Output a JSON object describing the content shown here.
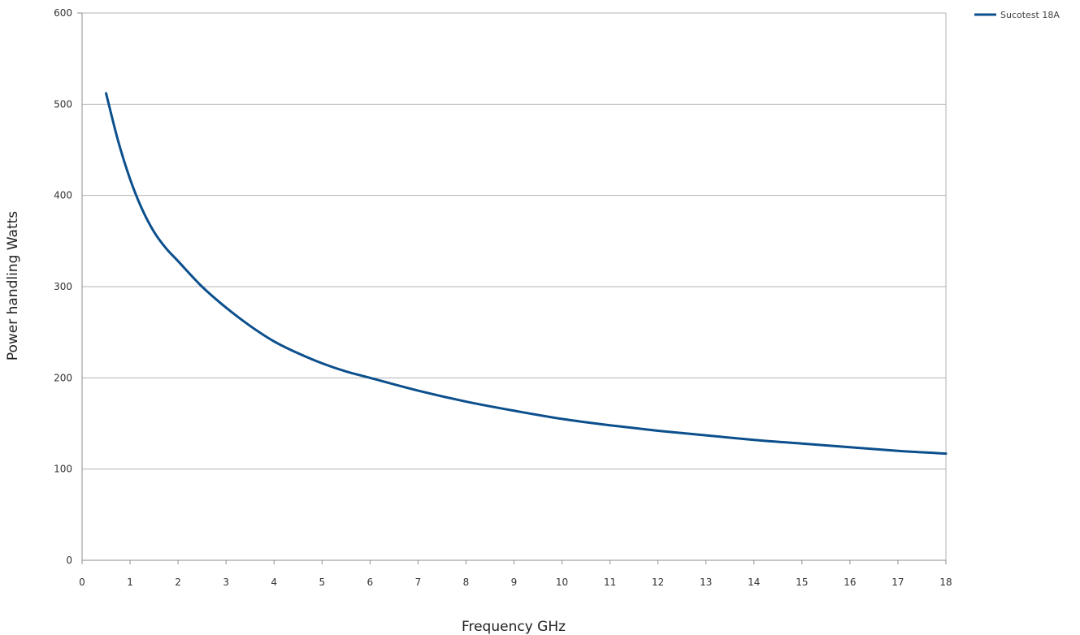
{
  "colors": {
    "series": "#0b4f8c",
    "grid": "#b3b3b3",
    "axis": "#8c8c8c",
    "background": "#ffffff"
  },
  "chart_data": {
    "type": "line",
    "title": "",
    "xlabel": "Frequency GHz",
    "ylabel": "Power handling Watts",
    "xlim": [
      0,
      18
    ],
    "ylim": [
      0,
      600
    ],
    "x_ticks": [
      "0",
      "1",
      "2",
      "3",
      "4",
      "5",
      "6",
      "7",
      "8",
      "9",
      "10",
      "11",
      "12",
      "13",
      "14",
      "15",
      "16",
      "17",
      "18"
    ],
    "y_ticks": [
      "0",
      "100",
      "200",
      "300",
      "400",
      "500",
      "600"
    ],
    "grid": "horizontal",
    "legend_position": "top-right",
    "series": [
      {
        "name": "Sucotest 18A",
        "x": [
          0.5,
          0.75,
          1,
          1.25,
          1.5,
          1.75,
          2,
          2.5,
          3,
          3.5,
          4,
          4.5,
          5,
          5.5,
          6,
          7,
          8,
          9,
          10,
          11,
          12,
          13,
          14,
          15,
          16,
          17,
          18
        ],
        "y": [
          512,
          460,
          418,
          385,
          360,
          342,
          328,
          300,
          277,
          257,
          240,
          227,
          216,
          207,
          200,
          186,
          174,
          164,
          155,
          148,
          142,
          137,
          132,
          128,
          124,
          120,
          117
        ]
      }
    ]
  }
}
